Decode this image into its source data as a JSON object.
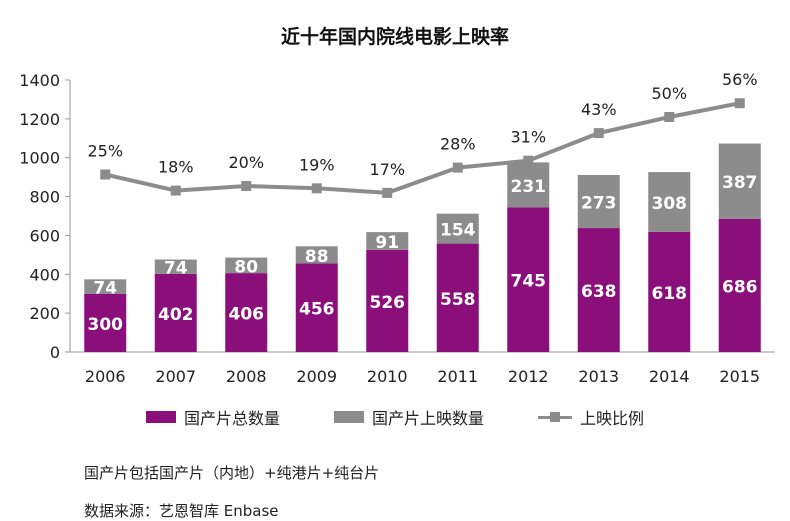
{
  "chart_data": {
    "type": "bar",
    "title": "近十年国内院线电影上映率",
    "categories": [
      "2006",
      "2007",
      "2008",
      "2009",
      "2010",
      "2011",
      "2012",
      "2013",
      "2014",
      "2015"
    ],
    "stacked": true,
    "series": [
      {
        "name": "国产片总数量",
        "kind": "bar",
        "color": "#8b0f7a",
        "values": [
          300,
          402,
          406,
          456,
          526,
          558,
          745,
          638,
          618,
          686
        ]
      },
      {
        "name": "国产片上映数量",
        "kind": "bar",
        "color": "#8c8c8c",
        "values": [
          74,
          74,
          80,
          88,
          91,
          154,
          231,
          273,
          308,
          387
        ]
      },
      {
        "name": "上映比例",
        "kind": "line",
        "color": "#8c8c8c",
        "values": [
          25,
          18,
          20,
          19,
          17,
          28,
          31,
          43,
          50,
          56
        ],
        "labels": [
          "25%",
          "18%",
          "20%",
          "19%",
          "17%",
          "28%",
          "31%",
          "43%",
          "50%",
          "56%"
        ]
      }
    ],
    "ylim": [
      0,
      1400
    ],
    "yticks": [
      "0",
      "200",
      "400",
      "600",
      "800",
      "1000",
      "1200",
      "1400"
    ],
    "grid": false,
    "legend_position": "bottom"
  },
  "notes": {
    "line1": "国产片包括国产片（内地）+纯港片+纯台片",
    "line2": "数据来源：艺恩智库 Enbase"
  }
}
